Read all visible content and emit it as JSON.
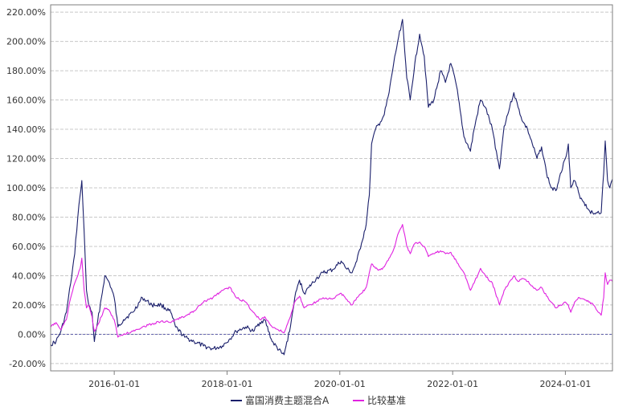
{
  "chart_data": {
    "type": "line",
    "title": "",
    "xlabel": "",
    "ylabel": "",
    "x_domain": [
      "2014-11-15",
      "2024-11-01"
    ],
    "x_ticks": [
      "2016-01-01",
      "2018-01-01",
      "2020-01-01",
      "2022-01-01",
      "2024-01-01"
    ],
    "ylim": [
      -0.25,
      2.25
    ],
    "y_ticks": [
      -0.2,
      0.0,
      0.2,
      0.4,
      0.6,
      0.8,
      1.0,
      1.2,
      1.4,
      1.6,
      1.8,
      2.0,
      2.2
    ],
    "y_tick_labels": [
      "-20.00%",
      "0.00%",
      "20.00%",
      "40.00%",
      "60.00%",
      "80.00%",
      "100.00%",
      "120.00%",
      "140.00%",
      "160.00%",
      "180.00%",
      "200.00%",
      "220.00%"
    ],
    "grid": "horizontal dashed",
    "legend_position": "bottom-center",
    "baseline": 0.0,
    "series": [
      {
        "name": "富国消费主题混合A",
        "color": "#1a1f6b",
        "points": [
          [
            "2014-11-15",
            -0.07
          ],
          [
            "2014-12-20",
            -0.05
          ],
          [
            "2015-01-20",
            0.02
          ],
          [
            "2015-02-25",
            0.15
          ],
          [
            "2015-03-25",
            0.35
          ],
          [
            "2015-04-20",
            0.55
          ],
          [
            "2015-05-10",
            0.8
          ],
          [
            "2015-05-25",
            0.95
          ],
          [
            "2015-06-05",
            1.05
          ],
          [
            "2015-06-20",
            0.7
          ],
          [
            "2015-07-05",
            0.3
          ],
          [
            "2015-07-20",
            0.2
          ],
          [
            "2015-08-10",
            0.15
          ],
          [
            "2015-08-25",
            -0.05
          ],
          [
            "2015-09-10",
            0.05
          ],
          [
            "2015-10-10",
            0.25
          ],
          [
            "2015-11-01",
            0.4
          ],
          [
            "2015-12-01",
            0.35
          ],
          [
            "2016-01-01",
            0.25
          ],
          [
            "2016-01-25",
            0.05
          ],
          [
            "2016-03-01",
            0.1
          ],
          [
            "2016-05-01",
            0.15
          ],
          [
            "2016-07-01",
            0.25
          ],
          [
            "2016-09-01",
            0.2
          ],
          [
            "2016-11-01",
            0.2
          ],
          [
            "2017-01-01",
            0.15
          ],
          [
            "2017-02-01",
            0.05
          ],
          [
            "2017-04-01",
            -0.02
          ],
          [
            "2017-06-01",
            -0.05
          ],
          [
            "2017-08-01",
            -0.08
          ],
          [
            "2017-10-01",
            -0.1
          ],
          [
            "2017-12-01",
            -0.08
          ],
          [
            "2018-01-20",
            -0.03
          ],
          [
            "2018-03-01",
            0.02
          ],
          [
            "2018-05-01",
            0.05
          ],
          [
            "2018-06-20",
            0.02
          ],
          [
            "2018-08-01",
            0.08
          ],
          [
            "2018-09-01",
            0.1
          ],
          [
            "2018-10-20",
            -0.05
          ],
          [
            "2018-12-20",
            -0.13
          ],
          [
            "2019-01-05",
            -0.14
          ],
          [
            "2019-02-15",
            0.05
          ],
          [
            "2019-03-15",
            0.25
          ],
          [
            "2019-04-15",
            0.37
          ],
          [
            "2019-05-15",
            0.28
          ],
          [
            "2019-06-15",
            0.32
          ],
          [
            "2019-08-01",
            0.38
          ],
          [
            "2019-09-15",
            0.42
          ],
          [
            "2019-11-15",
            0.44
          ],
          [
            "2020-01-10",
            0.5
          ],
          [
            "2020-02-10",
            0.45
          ],
          [
            "2020-03-20",
            0.42
          ],
          [
            "2020-04-20",
            0.5
          ],
          [
            "2020-05-20",
            0.62
          ],
          [
            "2020-06-20",
            0.75
          ],
          [
            "2020-07-10",
            0.95
          ],
          [
            "2020-07-25",
            1.3
          ],
          [
            "2020-08-20",
            1.4
          ],
          [
            "2020-09-20",
            1.45
          ],
          [
            "2020-10-15",
            1.5
          ],
          [
            "2020-11-15",
            1.65
          ],
          [
            "2020-12-15",
            1.85
          ],
          [
            "2021-01-10",
            2.0
          ],
          [
            "2021-02-10",
            2.15
          ],
          [
            "2021-03-10",
            1.75
          ],
          [
            "2021-04-01",
            1.6
          ],
          [
            "2021-05-01",
            1.85
          ],
          [
            "2021-06-01",
            2.05
          ],
          [
            "2021-07-01",
            1.9
          ],
          [
            "2021-07-28",
            1.55
          ],
          [
            "2021-09-01",
            1.6
          ],
          [
            "2021-10-15",
            1.8
          ],
          [
            "2021-11-15",
            1.72
          ],
          [
            "2021-12-20",
            1.85
          ],
          [
            "2022-01-25",
            1.7
          ],
          [
            "2022-03-15",
            1.35
          ],
          [
            "2022-04-26",
            1.25
          ],
          [
            "2022-05-20",
            1.4
          ],
          [
            "2022-06-30",
            1.6
          ],
          [
            "2022-08-01",
            1.55
          ],
          [
            "2022-09-15",
            1.4
          ],
          [
            "2022-10-31",
            1.13
          ],
          [
            "2022-11-30",
            1.42
          ],
          [
            "2023-01-05",
            1.55
          ],
          [
            "2023-02-01",
            1.65
          ],
          [
            "2023-03-01",
            1.55
          ],
          [
            "2023-04-01",
            1.45
          ],
          [
            "2023-05-01",
            1.4
          ],
          [
            "2023-06-01",
            1.3
          ],
          [
            "2023-07-01",
            1.2
          ],
          [
            "2023-07-31",
            1.28
          ],
          [
            "2023-09-01",
            1.1
          ],
          [
            "2023-10-01",
            1.0
          ],
          [
            "2023-10-31",
            0.98
          ],
          [
            "2023-11-30",
            1.1
          ],
          [
            "2024-01-01",
            1.2
          ],
          [
            "2024-01-20",
            1.3
          ],
          [
            "2024-02-05",
            1.0
          ],
          [
            "2024-03-01",
            1.05
          ],
          [
            "2024-04-01",
            0.95
          ],
          [
            "2024-05-01",
            0.9
          ],
          [
            "2024-06-01",
            0.85
          ],
          [
            "2024-07-01",
            0.82
          ],
          [
            "2024-08-01",
            0.84
          ],
          [
            "2024-08-20",
            0.83
          ],
          [
            "2024-09-05",
            1.1
          ],
          [
            "2024-09-15",
            1.32
          ],
          [
            "2024-09-30",
            1.05
          ],
          [
            "2024-10-15",
            1.0
          ],
          [
            "2024-11-01",
            1.06
          ]
        ]
      },
      {
        "name": "比较基准",
        "color": "#e022e0",
        "points": [
          [
            "2014-11-15",
            0.05
          ],
          [
            "2014-12-20",
            0.08
          ],
          [
            "2015-01-20",
            0.03
          ],
          [
            "2015-02-25",
            0.1
          ],
          [
            "2015-03-25",
            0.25
          ],
          [
            "2015-04-20",
            0.35
          ],
          [
            "2015-05-10",
            0.4
          ],
          [
            "2015-05-25",
            0.45
          ],
          [
            "2015-06-05",
            0.52
          ],
          [
            "2015-06-20",
            0.3
          ],
          [
            "2015-07-05",
            0.18
          ],
          [
            "2015-07-20",
            0.2
          ],
          [
            "2015-08-10",
            0.12
          ],
          [
            "2015-08-25",
            0.02
          ],
          [
            "2015-09-10",
            0.05
          ],
          [
            "2015-10-10",
            0.12
          ],
          [
            "2015-11-01",
            0.18
          ],
          [
            "2015-12-01",
            0.16
          ],
          [
            "2016-01-01",
            0.1
          ],
          [
            "2016-01-25",
            -0.02
          ],
          [
            "2016-03-01",
            0.0
          ],
          [
            "2016-05-01",
            0.02
          ],
          [
            "2016-07-01",
            0.05
          ],
          [
            "2016-09-01",
            0.07
          ],
          [
            "2016-11-01",
            0.09
          ],
          [
            "2017-01-01",
            0.08
          ],
          [
            "2017-02-01",
            0.1
          ],
          [
            "2017-04-01",
            0.12
          ],
          [
            "2017-06-01",
            0.16
          ],
          [
            "2017-08-01",
            0.22
          ],
          [
            "2017-10-01",
            0.25
          ],
          [
            "2017-12-01",
            0.3
          ],
          [
            "2018-01-20",
            0.32
          ],
          [
            "2018-03-01",
            0.25
          ],
          [
            "2018-05-01",
            0.22
          ],
          [
            "2018-06-20",
            0.15
          ],
          [
            "2018-08-01",
            0.1
          ],
          [
            "2018-09-01",
            0.12
          ],
          [
            "2018-10-20",
            0.05
          ],
          [
            "2018-12-20",
            0.02
          ],
          [
            "2019-01-05",
            0.01
          ],
          [
            "2019-02-15",
            0.12
          ],
          [
            "2019-03-15",
            0.22
          ],
          [
            "2019-04-15",
            0.26
          ],
          [
            "2019-05-15",
            0.18
          ],
          [
            "2019-06-15",
            0.2
          ],
          [
            "2019-08-01",
            0.22
          ],
          [
            "2019-09-15",
            0.25
          ],
          [
            "2019-11-15",
            0.24
          ],
          [
            "2020-01-10",
            0.28
          ],
          [
            "2020-02-10",
            0.24
          ],
          [
            "2020-03-20",
            0.2
          ],
          [
            "2020-04-20",
            0.25
          ],
          [
            "2020-05-20",
            0.28
          ],
          [
            "2020-06-20",
            0.32
          ],
          [
            "2020-07-10",
            0.42
          ],
          [
            "2020-07-25",
            0.48
          ],
          [
            "2020-08-20",
            0.45
          ],
          [
            "2020-09-20",
            0.44
          ],
          [
            "2020-10-15",
            0.46
          ],
          [
            "2020-11-15",
            0.52
          ],
          [
            "2020-12-15",
            0.58
          ],
          [
            "2021-01-10",
            0.68
          ],
          [
            "2021-02-10",
            0.75
          ],
          [
            "2021-03-10",
            0.6
          ],
          [
            "2021-04-01",
            0.55
          ],
          [
            "2021-05-01",
            0.62
          ],
          [
            "2021-06-01",
            0.63
          ],
          [
            "2021-07-01",
            0.6
          ],
          [
            "2021-07-28",
            0.53
          ],
          [
            "2021-09-01",
            0.55
          ],
          [
            "2021-10-15",
            0.57
          ],
          [
            "2021-11-15",
            0.55
          ],
          [
            "2021-12-20",
            0.56
          ],
          [
            "2022-01-25",
            0.5
          ],
          [
            "2022-03-15",
            0.42
          ],
          [
            "2022-04-26",
            0.3
          ],
          [
            "2022-05-20",
            0.35
          ],
          [
            "2022-06-30",
            0.45
          ],
          [
            "2022-08-01",
            0.4
          ],
          [
            "2022-09-15",
            0.35
          ],
          [
            "2022-10-31",
            0.2
          ],
          [
            "2022-11-30",
            0.3
          ],
          [
            "2023-01-05",
            0.36
          ],
          [
            "2023-02-01",
            0.4
          ],
          [
            "2023-03-01",
            0.36
          ],
          [
            "2023-04-01",
            0.38
          ],
          [
            "2023-05-01",
            0.36
          ],
          [
            "2023-06-01",
            0.33
          ],
          [
            "2023-07-01",
            0.3
          ],
          [
            "2023-07-31",
            0.32
          ],
          [
            "2023-09-01",
            0.26
          ],
          [
            "2023-10-01",
            0.22
          ],
          [
            "2023-10-31",
            0.18
          ],
          [
            "2023-11-30",
            0.2
          ],
          [
            "2024-01-01",
            0.22
          ],
          [
            "2024-01-20",
            0.2
          ],
          [
            "2024-02-05",
            0.15
          ],
          [
            "2024-03-01",
            0.22
          ],
          [
            "2024-04-01",
            0.25
          ],
          [
            "2024-05-01",
            0.24
          ],
          [
            "2024-06-01",
            0.22
          ],
          [
            "2024-07-01",
            0.2
          ],
          [
            "2024-08-01",
            0.15
          ],
          [
            "2024-08-20",
            0.13
          ],
          [
            "2024-09-05",
            0.25
          ],
          [
            "2024-09-15",
            0.42
          ],
          [
            "2024-09-30",
            0.34
          ],
          [
            "2024-10-15",
            0.37
          ],
          [
            "2024-11-01",
            0.36
          ]
        ]
      }
    ]
  }
}
